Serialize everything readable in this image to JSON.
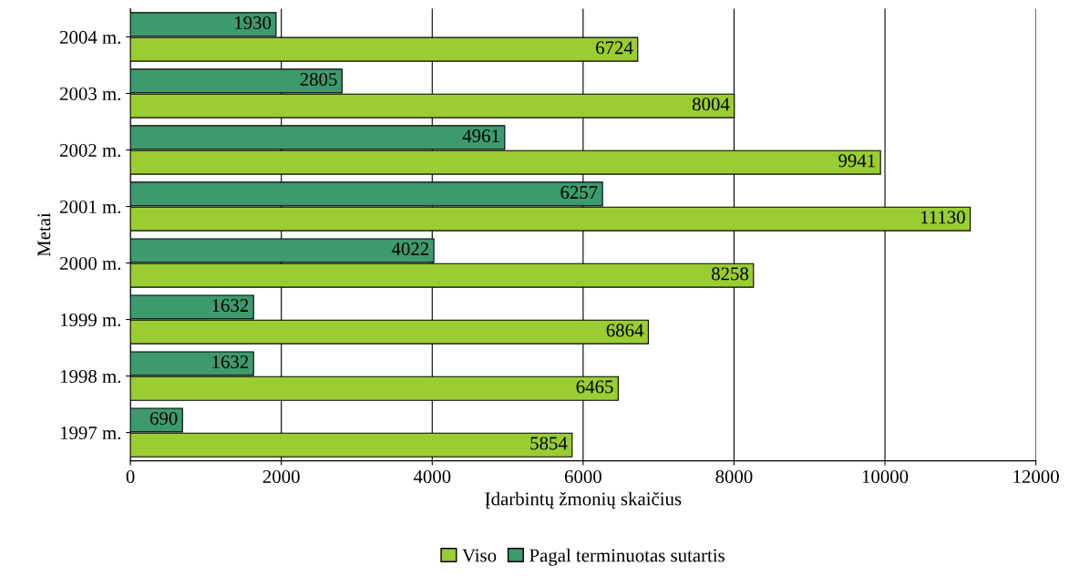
{
  "chart_data": {
    "type": "bar",
    "orientation": "horizontal",
    "xlabel": "Įdarbintų žmonių skaičius",
    "ylabel": "Metai",
    "categories": [
      "2004 m.",
      "2003 m.",
      "2002 m.",
      "2001 m.",
      "2000 m.",
      "1999 m.",
      "1998 m.",
      "1997 m."
    ],
    "series": [
      {
        "name": "Viso",
        "color": "#9acd32",
        "values": [
          6724,
          8004,
          9941,
          11130,
          8258,
          6864,
          6465,
          5854
        ]
      },
      {
        "name": "Pagal terminuotas sutartis",
        "color": "#3d9a6c",
        "values": [
          1930,
          2805,
          4961,
          6257,
          4022,
          1632,
          1632,
          690
        ]
      }
    ],
    "xlim": [
      0,
      12000
    ],
    "xticks": [
      0,
      2000,
      4000,
      6000,
      8000,
      10000,
      12000
    ],
    "grid": "x",
    "legend": "bottom",
    "data_labels": true
  }
}
